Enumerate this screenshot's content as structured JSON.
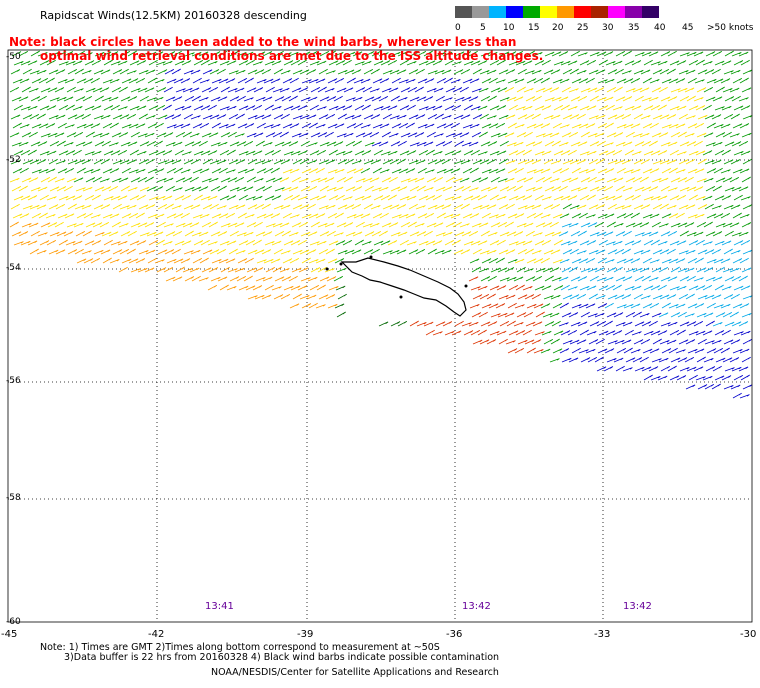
{
  "title": "Rapidscat Winds(12.5KM) 20160328 descending",
  "note_line1": "Note: black circles have been added to the wind barbs, wherever less than",
  "note_line2": "optimal wind retrieval conditions are met due to the ISS altitude changes.",
  "legend": {
    "labels": [
      "0",
      "5",
      "10",
      "15",
      "20",
      "25",
      "30",
      "35",
      "40",
      "45",
      ">50 knots"
    ],
    "colors": [
      "#555555",
      "#999999",
      "#00b4ff",
      "#0000ff",
      "#00aa00",
      "#ffff00",
      "#ff9900",
      "#ff0000",
      "#aa2200",
      "#ff00ff",
      "#8800aa",
      "#330066"
    ]
  },
  "lat_labels": [
    "-50",
    "-52",
    "-54",
    "-56",
    "-58",
    "-60"
  ],
  "lon_labels": [
    "-45",
    "-42",
    "-39",
    "-36",
    "-33",
    "-30"
  ],
  "times": [
    "13:41",
    "13:42",
    "13:42"
  ],
  "footnote1": "Note: 1) Times are GMT 2)Times along bottom correspond to measurement at ~50S",
  "footnote2": "3)Data buffer is 22 hrs from 20160328 4) Black wind barbs indicate possible contamination",
  "credit": "NOAA/NESDIS/Center for Satellite Applications and Research",
  "colors": {
    "blue": "#0000cc",
    "cyan": "#00a8e8",
    "green": "#009900",
    "yellow": "#ffe000",
    "orange": "#ff9900",
    "red": "#dd3300",
    "darkgreen": "#006600",
    "note": "#ff0000",
    "time": "#660099"
  }
}
